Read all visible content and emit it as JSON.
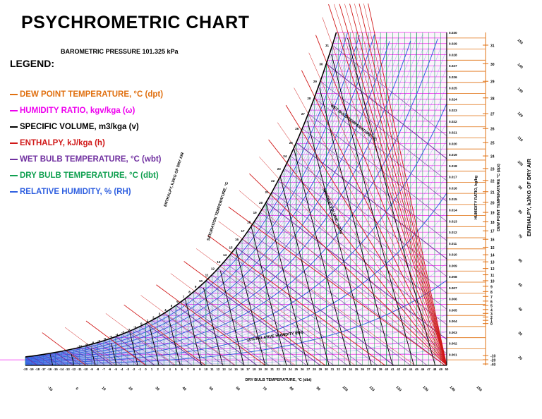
{
  "title": "PSYCHROMETRIC CHART",
  "pressure": "BAROMETRIC PRESSURE 101.325 kPa",
  "legend_heading": "LEGEND:",
  "legend": [
    {
      "text": "DEW POINT TEMPERATURE, °C (dpt)",
      "color": "#e07010"
    },
    {
      "text": "HUMIDITY RATIO, kgv/kga (ω)",
      "color": "#ee00ee"
    },
    {
      "text": "SPECIFIC VOLUME, m3/kga (v)",
      "color": "#000000"
    },
    {
      "text": "ENTHALPY, kJ/kga (h)",
      "color": "#d01818"
    },
    {
      "text": "WET BULB TEMPERATURE, °C (wbt)",
      "color": "#7030a0"
    },
    {
      "text": "DRY BULB TEMPERATURE, °C (dbt)",
      "color": "#10a050"
    },
    {
      "text": "RELATIVE HUMIDITY, % (RH)",
      "color": "#3060e0"
    }
  ],
  "chart_data": {
    "type": "line",
    "x_axis_label": "DRY BULB TEMPERATURE, °C (dbt)",
    "y_axis_label": "HUMIDITY RATIO, kg/kg",
    "right_axis_label": "ENTHALPY, kJ/KG OF DRY AIR",
    "dew_point_axis_label": "DEW POINT TEMPERATURE °C (dpt)",
    "saturation_label": "SATURATION TEMPERATURE, °C",
    "enthalpy_scale_label": "ENTHALPY, kJ/KG OF DRY AIR",
    "wet_bulb_label": "WET BULB TEMPERATURE, °C",
    "specific_volume_label": "SPECIFIC VOLUME, m3/kg",
    "rh_curve_label": "10% RELATIVE HUMIDITY (RH)",
    "xlim": [
      -20,
      50
    ],
    "ylim": [
      0,
      0.03
    ],
    "x_ticks": [
      -10,
      -5,
      0,
      5,
      10,
      15,
      20,
      25,
      30,
      35,
      40,
      45,
      50
    ],
    "humidity_ratio_ticks": [
      "0.030",
      "0.029",
      "0.028",
      "0.027",
      "0.026",
      "0.025",
      "0.024",
      "0.023",
      "0.022",
      "0.021",
      "0.020",
      "0.019",
      "0.018",
      "0.017",
      "0.016",
      "0.015",
      "0.014",
      "0.013",
      "0.012",
      "0.011",
      "0.010",
      "0.009",
      "0.008",
      "0.007",
      "0.006",
      "0.005",
      "0.004",
      "0.003",
      "0.002",
      "0.001"
    ],
    "dew_point_ticks": [
      "31",
      "30",
      "29",
      "28",
      "27",
      "26",
      "25",
      "24",
      "23",
      "22",
      "21",
      "20",
      "19",
      "18",
      "17",
      "16",
      "15",
      "14",
      "13",
      "12",
      "11",
      "10",
      "9",
      "8",
      "7",
      "6",
      "5",
      "4",
      "3",
      "2",
      "1",
      "0",
      "-10",
      "-20",
      "-40"
    ],
    "enthalpy_ticks": [
      "150",
      "140",
      "130",
      "120",
      "110",
      "100",
      "90",
      "80",
      "70",
      "60",
      "50",
      "40",
      "30",
      "20"
    ],
    "relative_humidity_pct": [
      10,
      20,
      30,
      40,
      50,
      60,
      70,
      80,
      90,
      100
    ],
    "wet_bulb_c": [
      0,
      5,
      10,
      15,
      20,
      25,
      30
    ],
    "specific_volume_m3_per_kg": [
      0.76,
      0.78,
      0.8,
      0.82,
      0.84,
      0.86,
      0.88,
      0.9,
      0.92,
      0.94
    ],
    "enthalpy_kj_per_kg": [
      10,
      20,
      30,
      40,
      50,
      60,
      70,
      80,
      90,
      100,
      110,
      120,
      130,
      140,
      150
    ]
  }
}
